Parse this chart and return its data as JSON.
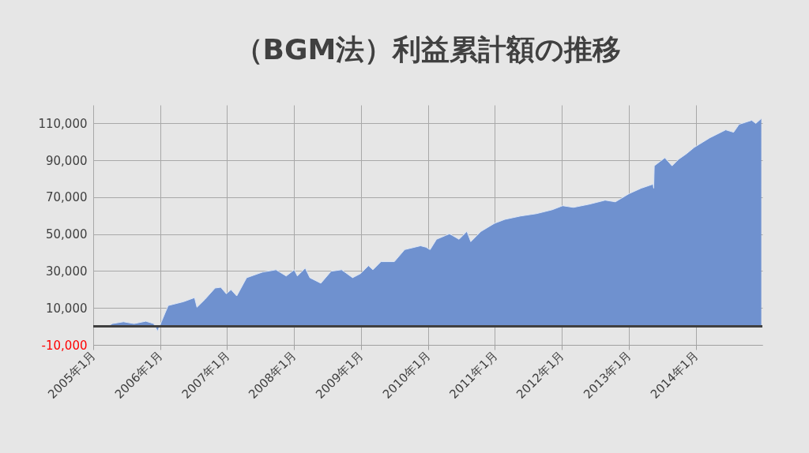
{
  "chart_data": {
    "type": "area",
    "title": "（BGM法）利益累計額の推移",
    "x": [
      "2005-03-20",
      "2005-04-15",
      "2005-06-15",
      "2005-08-12",
      "2005-10-15",
      "2005-11-27",
      "2005-12-18",
      "2006-01-10",
      "2006-02-14",
      "2006-05-09",
      "2006-07-08",
      "2006-07-21",
      "2006-09-03",
      "2006-10-28",
      "2006-11-28",
      "2006-12-28",
      "2007-01-23",
      "2007-02-23",
      "2007-04-18",
      "2007-07-13",
      "2007-09-25",
      "2007-11-20",
      "2008-01-03",
      "2008-01-20",
      "2008-03-03",
      "2008-03-28",
      "2008-05-27",
      "2008-07-22",
      "2008-09-17",
      "2008-11-16",
      "2008-12-29",
      "2009-02-11",
      "2009-03-07",
      "2009-04-20",
      "2009-07-02",
      "2009-08-27",
      "2009-11-22",
      "2009-12-22",
      "2010-01-13",
      "2010-02-17",
      "2010-04-29",
      "2010-06-20",
      "2010-08-02",
      "2010-08-23",
      "2010-10-18",
      "2010-12-31",
      "2011-02-25",
      "2011-05-21",
      "2011-08-16",
      "2011-11-10",
      "2012-01-06",
      "2012-03-05",
      "2012-05-30",
      "2012-08-25",
      "2012-10-20",
      "2013-01-02",
      "2013-03-10",
      "2013-05-14",
      "2013-05-17",
      "2013-05-20",
      "2013-07-17",
      "2013-08-25",
      "2013-09-29",
      "2013-11-11",
      "2013-12-24",
      "2014-03-19",
      "2014-06-14",
      "2014-07-27",
      "2014-08-26",
      "2014-11-03",
      "2014-11-25",
      "2014-12-25"
    ],
    "series": [
      {
        "color": "#6f91cf",
        "values": [
          0,
          1500,
          2500,
          1500,
          2800,
          1500,
          -2600,
          3000,
          11300,
          13400,
          15600,
          10400,
          14700,
          20800,
          21200,
          17700,
          19900,
          16500,
          26400,
          29400,
          30700,
          27300,
          30700,
          27300,
          31600,
          26400,
          23400,
          29900,
          30700,
          26400,
          28600,
          32900,
          30700,
          35100,
          35100,
          41600,
          43700,
          42900,
          41600,
          47200,
          50200,
          47200,
          51500,
          45900,
          51500,
          55900,
          58000,
          59800,
          61100,
          63200,
          65400,
          64500,
          66200,
          68400,
          67500,
          71900,
          74900,
          77100,
          74900,
          87000,
          91400,
          87000,
          90500,
          93500,
          97000,
          102200,
          106500,
          105200,
          109500,
          111700,
          110000,
          112600
        ]
      }
    ],
    "xlim": [
      "2005-01-01",
      "2014-12-31"
    ],
    "xticks": [
      {
        "value": "2005-01-01",
        "label": "2005年1月"
      },
      {
        "value": "2006-01-01",
        "label": "2006年1月"
      },
      {
        "value": "2007-01-01",
        "label": "2007年1月"
      },
      {
        "value": "2008-01-01",
        "label": "2008年1月"
      },
      {
        "value": "2009-01-01",
        "label": "2009年1月"
      },
      {
        "value": "2010-01-01",
        "label": "2010年1月"
      },
      {
        "value": "2011-01-01",
        "label": "2011年1月"
      },
      {
        "value": "2012-01-01",
        "label": "2012年1月"
      },
      {
        "value": "2013-01-01",
        "label": "2013年1月"
      },
      {
        "value": "2014-01-01",
        "label": "2014年1月"
      }
    ],
    "ylim": [
      -10000,
      120000
    ],
    "yticks": [
      {
        "value": -10000,
        "label": "-10,000"
      },
      {
        "value": 10000,
        "label": "10,000"
      },
      {
        "value": 30000,
        "label": "30,000"
      },
      {
        "value": 50000,
        "label": "50,000"
      },
      {
        "value": 70000,
        "label": "70,000"
      },
      {
        "value": 90000,
        "label": "90,000"
      },
      {
        "value": 110000,
        "label": "110,000"
      }
    ],
    "ref_lines": [
      {
        "axis": "y",
        "value": 0,
        "color": "#404040"
      }
    ],
    "grid": true
  }
}
